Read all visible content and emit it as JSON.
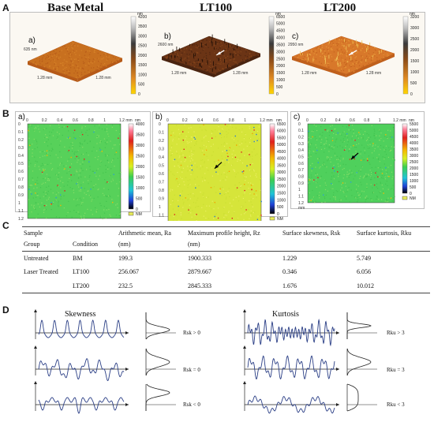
{
  "panels": {
    "A": "A",
    "B": "B",
    "C": "C",
    "D": "D"
  },
  "panelA": {
    "titles": [
      "Base Metal",
      "LT100",
      "LT200"
    ],
    "sublabels": [
      "a)",
      "b)",
      "c)"
    ],
    "items": [
      {
        "unit": "nm",
        "ticks": [
          "4200",
          "3500",
          "3000",
          "2500",
          "2000",
          "1500",
          "1000",
          "500",
          "0"
        ],
        "axis_front": "1.28 mm",
        "axis_right": "1.28 mm",
        "axis_side": "635 nm",
        "colors": [
          "#b65a18",
          "#c8701f",
          "#d9862b"
        ]
      },
      {
        "unit": "nm",
        "ticks": [
          "6500",
          "5000",
          "4500",
          "4000",
          "3500",
          "3000",
          "2500",
          "2000",
          "1500",
          "1000",
          "500",
          "0"
        ],
        "axis_front": "1.28 mm",
        "axis_right": "1.28 mm",
        "axis_side": "2600 nm",
        "colors": [
          "#4a2410",
          "#6b3415",
          "#8c4a1c"
        ]
      },
      {
        "unit": "nm",
        "ticks": [
          "3200",
          "3000",
          "2500",
          "2000",
          "1500",
          "1000",
          "500",
          "0"
        ],
        "axis_front": "1.28 mm",
        "axis_right": "1.28 mm",
        "axis_side": "2950 nm",
        "colors": [
          "#c0601c",
          "#d8782a",
          "#e99a3a"
        ]
      }
    ]
  },
  "panelB": {
    "sublabels": [
      "a)",
      "b)",
      "c)"
    ],
    "xticks": [
      "0",
      "0.2",
      "0.4",
      "0.6",
      "0.8",
      "1",
      "1.2 mm"
    ],
    "yticks": [
      "0",
      "0.1",
      "0.2",
      "0.3",
      "0.4",
      "0.5",
      "0.6",
      "0.7",
      "0.8",
      "0.9",
      "1",
      "1.1",
      "1.2"
    ],
    "mm": "mm",
    "nm": "nm",
    "nm_box": "NM",
    "items": [
      {
        "cticks": [
          "4000",
          "3500",
          "3000",
          "2500",
          "2000",
          "1500",
          "1000",
          "500",
          "0"
        ],
        "bg": "#57d15a"
      },
      {
        "cticks": [
          "6500",
          "6000",
          "5500",
          "5000",
          "4500",
          "4000",
          "3500",
          "3000",
          "2500",
          "2000",
          "1500",
          "1000",
          "500",
          "0"
        ],
        "bg": "#d6e53a"
      },
      {
        "cticks": [
          "5500",
          "5000",
          "4500",
          "4000",
          "3500",
          "3000",
          "2500",
          "2000",
          "1500",
          "1000",
          "500",
          "0"
        ],
        "bg": "#4fd05c"
      }
    ]
  },
  "table": {
    "headers": [
      [
        "Sample",
        "Group"
      ],
      [
        "",
        "Condition"
      ],
      [
        "Arithmetic mean, Ra",
        "(nm)"
      ],
      [
        "Maximum profile height, Rz",
        "(nm)"
      ],
      [
        "Surface skewness, Rsk",
        ""
      ],
      [
        "Surface kurtosis, Rku",
        ""
      ]
    ],
    "rows": [
      [
        "Untreated",
        "BM",
        "199.3",
        "1900.333",
        "1.229",
        "5.749"
      ],
      [
        "Laser Treated",
        "LT100",
        "256.067",
        "2879.667",
        "0.346",
        "6.056"
      ],
      [
        "",
        "LT200",
        "232.5",
        "2845.333",
        "1.676",
        "10.012"
      ]
    ]
  },
  "panelD": {
    "skew_title": "Skewness",
    "kurt_title": "Kurtosis",
    "skew_labels": [
      "Rsk > 0",
      "Rsk = 0",
      "Rsk < 0"
    ],
    "kurt_labels": [
      "Rku > 3",
      "Rku = 3",
      "Rku < 3"
    ],
    "line_color": "#2b3f86"
  }
}
